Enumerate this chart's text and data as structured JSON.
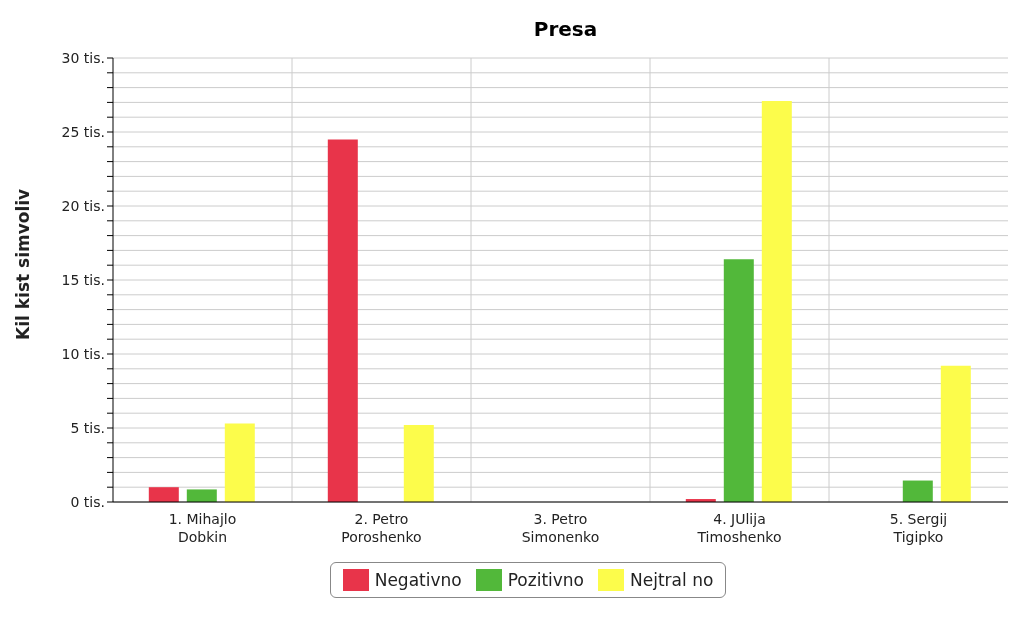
{
  "chart_data": {
    "type": "bar",
    "title": "Presa",
    "ylabel": "Kil kist simvoliv",
    "categories": [
      "1. Mihajlo Dobkin",
      "2. Petro Poroshenko",
      "3. Petro Simonenko",
      "4. JUlija Timoshenko",
      "5. Sergij Tigipko"
    ],
    "series": [
      {
        "name": "Negativno",
        "color": "#e8344a",
        "values": [
          1.0,
          24.5,
          0,
          0.2,
          0
        ]
      },
      {
        "name": "Pozitivno",
        "color": "#52b83a",
        "values": [
          0.85,
          0,
          0,
          16.4,
          1.45
        ]
      },
      {
        "name": "Nejtral no",
        "color": "#fcfc4b",
        "values": [
          5.3,
          5.2,
          0,
          27.1,
          9.2
        ]
      }
    ],
    "ylim": [
      0,
      30
    ],
    "yticks": [
      {
        "value": 0,
        "label": "0 tis."
      },
      {
        "value": 1,
        "label": null
      },
      {
        "value": 2,
        "label": null
      },
      {
        "value": 3,
        "label": null
      },
      {
        "value": 4,
        "label": null
      },
      {
        "value": 5,
        "label": "5 tis."
      },
      {
        "value": 6,
        "label": null
      },
      {
        "value": 7,
        "label": null
      },
      {
        "value": 8,
        "label": null
      },
      {
        "value": 9,
        "label": null
      },
      {
        "value": 10,
        "label": "10 tis."
      },
      {
        "value": 11,
        "label": null
      },
      {
        "value": 12,
        "label": null
      },
      {
        "value": 13,
        "label": null
      },
      {
        "value": 14,
        "label": null
      },
      {
        "value": 15,
        "label": "15 tis."
      },
      {
        "value": 16,
        "label": null
      },
      {
        "value": 17,
        "label": null
      },
      {
        "value": 18,
        "label": null
      },
      {
        "value": 19,
        "label": null
      },
      {
        "value": 20,
        "label": "20 tis."
      },
      {
        "value": 21,
        "label": null
      },
      {
        "value": 22,
        "label": null
      },
      {
        "value": 23,
        "label": null
      },
      {
        "value": 24,
        "label": null
      },
      {
        "value": 25,
        "label": "25 tis."
      },
      {
        "value": 26,
        "label": null
      },
      {
        "value": 27,
        "label": null
      },
      {
        "value": 28,
        "label": null
      },
      {
        "value": 29,
        "label": null
      },
      {
        "value": 30,
        "label": "30 tis."
      }
    ],
    "grid": true,
    "legend": "bottom"
  }
}
